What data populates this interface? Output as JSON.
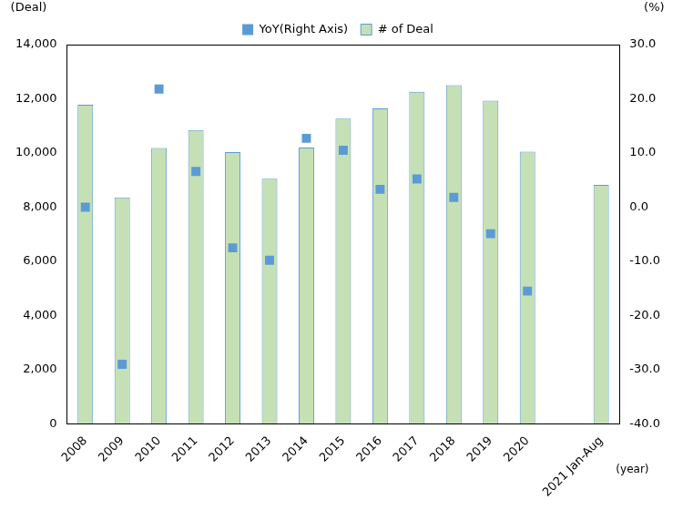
{
  "chart_data": {
    "type": "bar",
    "categories": [
      "2008",
      "2009",
      "2010",
      "2011",
      "2012",
      "2013",
      "2014",
      "2015",
      "2016",
      "2017",
      "2018",
      "2019",
      "2020",
      null,
      "2021 Jan-Aug"
    ],
    "series": [
      {
        "name": "# of Deal",
        "type": "bar",
        "color": "#c5e0b4",
        "values": [
          11780,
          8360,
          10180,
          10850,
          10030,
          9050,
          10200,
          11270,
          11650,
          12260,
          12500,
          11930,
          10050,
          null,
          8820
        ]
      },
      {
        "name": "YoY(Right Axis)",
        "type": "scatter",
        "axis": "y2",
        "color": "#5b9bd5",
        "marker": "square",
        "values": [
          0.0,
          -29.0,
          21.8,
          6.6,
          -7.5,
          -9.8,
          12.7,
          10.5,
          3.3,
          5.2,
          1.8,
          -4.9,
          -15.5,
          null,
          null
        ]
      }
    ],
    "ylim": [
      0,
      14000
    ],
    "yticks": [
      0,
      {
        "value": 2000,
        "label": "2,000"
      },
      {
        "value": 4000,
        "label": "4,000"
      },
      {
        "value": 6000,
        "label": "6,000"
      },
      {
        "value": 8000,
        "label": "8,000"
      },
      {
        "value": 10000,
        "label": "10,000"
      },
      {
        "value": 12000,
        "label": "12,000"
      },
      {
        "value": 14000,
        "label": "14,000"
      }
    ],
    "y2lim": [
      -40,
      30
    ],
    "y2ticks": [
      {
        "value": -40,
        "label": "-40.0"
      },
      {
        "value": -30,
        "label": "-30.0"
      },
      {
        "value": -20,
        "label": "-20.0"
      },
      {
        "value": -10,
        "label": "-10.0"
      },
      {
        "value": 0,
        "label": "0.0"
      },
      {
        "value": 10,
        "label": "10.0"
      },
      {
        "value": 20,
        "label": "20.0"
      },
      {
        "value": 30,
        "label": "30.0"
      }
    ],
    "y_label": "(Deal)",
    "y2_label": "(%)",
    "x_label": "(year)",
    "legend": "top",
    "grid": false
  }
}
